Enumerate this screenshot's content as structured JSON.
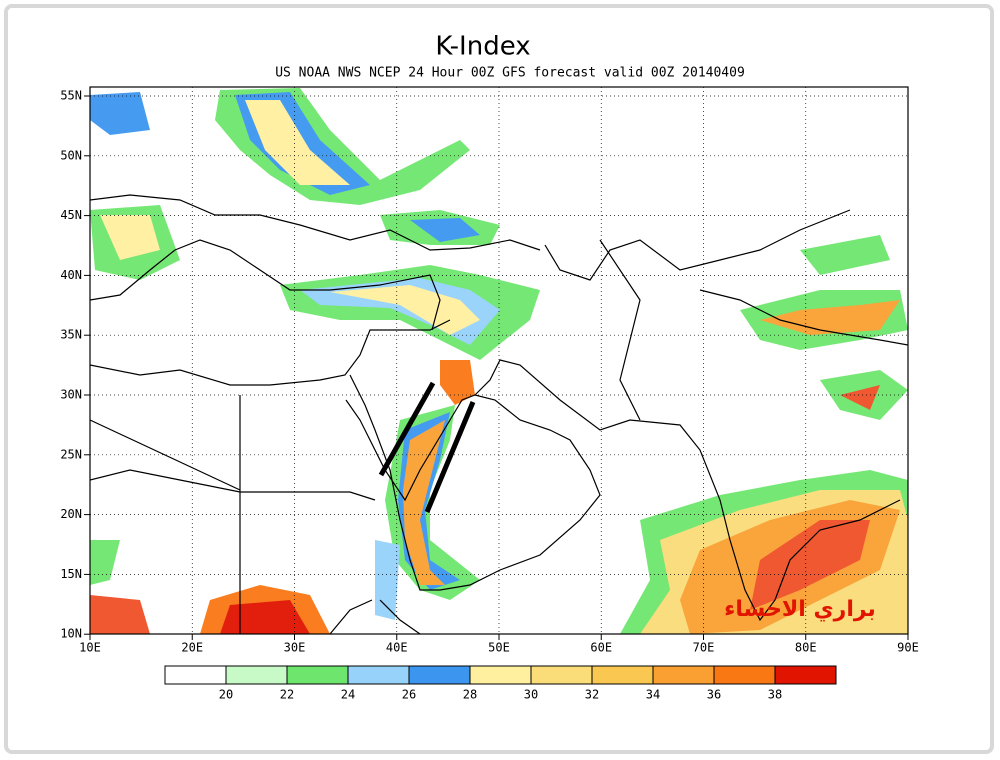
{
  "header": {
    "title": "K-Index",
    "subtitle": "US NOAA NWS NCEP 24 Hour 00Z GFS forecast valid 00Z 20140409"
  },
  "map": {
    "lat_labels": [
      "55N",
      "50N",
      "45N",
      "40N",
      "35N",
      "30N",
      "25N",
      "20N",
      "15N",
      "10N"
    ],
    "lon_labels": [
      "10E",
      "20E",
      "30E",
      "40E",
      "50E",
      "60E",
      "70E",
      "80E",
      "90E"
    ]
  },
  "colorbar": {
    "labels": [
      "20",
      "22",
      "24",
      "26",
      "28",
      "30",
      "32",
      "34",
      "36",
      "38"
    ]
  },
  "watermark": "براري الاحساء"
}
